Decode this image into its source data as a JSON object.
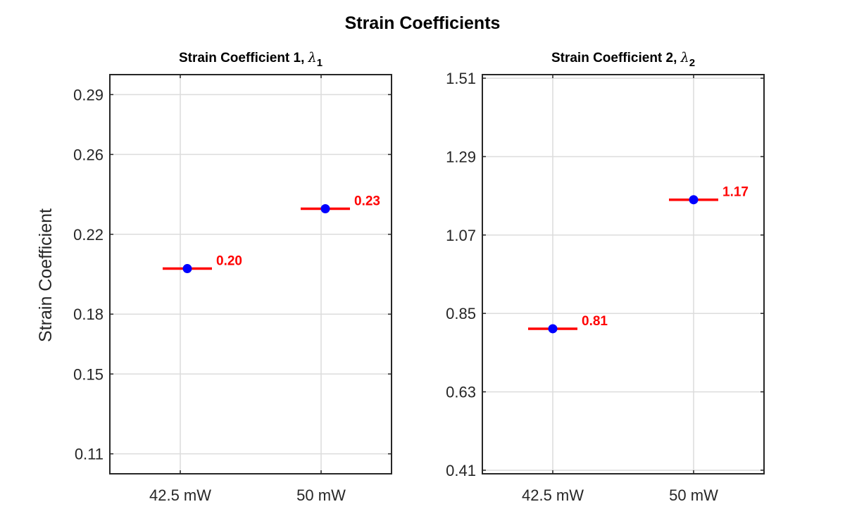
{
  "chart_data": {
    "title": "Strain Coefficients",
    "ylabel": "Strain Coefficient",
    "panels": [
      {
        "type": "scatter",
        "title": "Strain Coefficient 1, ",
        "title_symbol": "λ",
        "title_subscript": "1",
        "categories": [
          "42.5 mW",
          "50 mW"
        ],
        "x": [
          1.05,
          2.03
        ],
        "values": [
          0.2028,
          0.2328
        ],
        "value_labels": [
          "0.20",
          "0.23"
        ],
        "ylim": [
          0.1,
          0.3
        ],
        "yticks": [
          0.11,
          0.15,
          0.18,
          0.22,
          0.26,
          0.29
        ],
        "ytick_labels": [
          "0.11",
          "0.15",
          "0.18",
          "0.22",
          "0.26",
          "0.29"
        ],
        "grid": true
      },
      {
        "type": "scatter",
        "title": "Strain Coefficient 2, ",
        "title_symbol": "λ",
        "title_subscript": "2",
        "categories": [
          "42.5 mW",
          "50 mW"
        ],
        "x": [
          1.0,
          2.0
        ],
        "values": [
          0.807,
          1.169
        ],
        "value_labels": [
          "0.81",
          "1.17"
        ],
        "ylim": [
          0.4,
          1.52
        ],
        "yticks": [
          0.41,
          0.63,
          0.85,
          1.07,
          1.29,
          1.51
        ],
        "ytick_labels": [
          "0.41",
          "0.63",
          "0.85",
          "1.07",
          "1.29",
          "1.51"
        ],
        "grid": true
      }
    ],
    "colors": {
      "marker": "#0000ff",
      "line": "#ff0000",
      "label": "#ff0000",
      "grid": "#dcdcdc",
      "axis": "#262626"
    }
  }
}
